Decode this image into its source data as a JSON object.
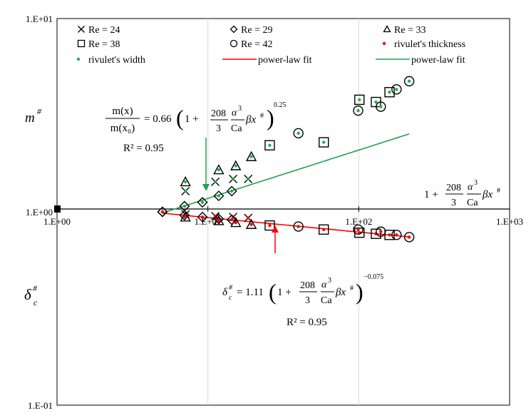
{
  "chart_data": {
    "type": "scatter",
    "xscale": "log",
    "yscale": "log",
    "xlim": [
      1,
      1000
    ],
    "ylim": [
      0.1,
      10
    ],
    "grid": "vertical",
    "legend_position": "top",
    "x_ticks": [
      "1.E+00",
      "1.E+01",
      "1.E+02",
      "1.E+03"
    ],
    "y_ticks": [
      "1.E-01",
      "1.E+00",
      "1.E+01"
    ],
    "legend": [
      {
        "label": "Re = 24",
        "marker": "x"
      },
      {
        "label": "Re = 29",
        "marker": "diamond"
      },
      {
        "label": "Re = 33",
        "marker": "triangle"
      },
      {
        "label": "Re = 38",
        "marker": "square"
      },
      {
        "label": "Re = 42",
        "marker": "circle"
      },
      {
        "label": "rivulet's thickness",
        "marker": "dot",
        "color": "#ff0000"
      },
      {
        "label": "rivulet's width",
        "marker": "dot",
        "color": "#22b050"
      },
      {
        "label": "power-law fit",
        "marker": "line",
        "color": "#ff0000"
      },
      {
        "label": "power-law fit",
        "marker": "line",
        "color": "#22a050"
      }
    ],
    "series": [
      {
        "name": "Re = 24",
        "marker": "x",
        "width_points": [
          [
            7.1,
            1.28
          ],
          [
            11.2,
            1.43
          ],
          [
            14.7,
            1.48
          ],
          [
            18.5,
            1.48
          ]
        ],
        "thickness_points": [
          [
            7.1,
            0.97
          ],
          [
            11.2,
            0.95
          ],
          [
            14.7,
            0.94
          ],
          [
            18.5,
            0.93
          ]
        ]
      },
      {
        "name": "Re = 29",
        "marker": "diamond",
        "width_points": [
          [
            5.0,
            1.0
          ],
          [
            7.0,
            1.07
          ],
          [
            9.2,
            1.12
          ],
          [
            11.8,
            1.21
          ],
          [
            14.4,
            1.28
          ]
        ],
        "thickness_points": [
          [
            5.0,
            1.0
          ],
          [
            7.0,
            0.96
          ],
          [
            9.2,
            0.94
          ],
          [
            11.8,
            0.92
          ],
          [
            14.4,
            0.91
          ]
        ]
      },
      {
        "name": "Re = 33",
        "marker": "triangle",
        "width_points": [
          [
            7.1,
            1.43
          ],
          [
            11.8,
            1.65
          ],
          [
            15.3,
            1.73
          ],
          [
            19.4,
            1.93
          ]
        ],
        "thickness_points": [
          [
            7.1,
            0.94
          ],
          [
            11.8,
            0.9
          ],
          [
            15.3,
            0.88
          ],
          [
            19.4,
            0.86
          ]
        ]
      },
      {
        "name": "Re = 38",
        "marker": "square",
        "width_points": [
          [
            25.7,
            2.21
          ],
          [
            58.6,
            2.29
          ],
          [
            101,
            3.8
          ],
          [
            130,
            3.7
          ],
          [
            160,
            4.16
          ]
        ],
        "thickness_points": [
          [
            25.7,
            0.85
          ],
          [
            58.6,
            0.81
          ],
          [
            101,
            0.78
          ],
          [
            130,
            0.77
          ],
          [
            160,
            0.76
          ]
        ]
      },
      {
        "name": "Re = 42",
        "marker": "circle",
        "width_points": [
          [
            39.8,
            2.55
          ],
          [
            99.1,
            3.34
          ],
          [
            140,
            3.5
          ],
          [
            178,
            4.3
          ],
          [
            216,
            4.74
          ]
        ],
        "thickness_points": [
          [
            39.8,
            0.84
          ],
          [
            99.1,
            0.81
          ],
          [
            140,
            0.79
          ],
          [
            178,
            0.76
          ],
          [
            216,
            0.74
          ]
        ]
      }
    ],
    "fits": [
      {
        "name": "power-law fit",
        "quantity": "width",
        "coefficient": 0.66,
        "exponent": 0.25,
        "x_range": [
          5,
          216
        ],
        "color": "#22a050"
      },
      {
        "name": "power-law fit",
        "quantity": "thickness",
        "coefficient": 1.11,
        "exponent": -0.075,
        "x_range": [
          5,
          216
        ],
        "color": "#ff0000"
      }
    ],
    "annotations": {
      "upper_equation": {
        "lhs_num": "m(x)",
        "lhs_den": "m(x₀)",
        "equals": "= 0.66",
        "exponent": "0.25",
        "r2": "R² = 0.95"
      },
      "lower_equation": {
        "lhs": "δ",
        "lhs_sub": "c",
        "lhs_sup": "#",
        "equals": "= 1.11",
        "exponent": "−0.075",
        "r2": "R² = 0.95"
      },
      "bracket": {
        "one_plus": "1 +",
        "num": "208",
        "den": "3",
        "alpha": "α",
        "alpha_exp": "3",
        "ca": "Ca",
        "beta_x": "βx",
        "x_sup": "#"
      },
      "x_axis_label": {
        "one_plus": "1 +",
        "num": "208",
        "den": "3",
        "alpha": "α",
        "alpha_exp": "3",
        "ca": "Ca",
        "beta_x": "βx",
        "x_sup": "#"
      },
      "y_label_upper": {
        "base": "m",
        "sup": "#"
      },
      "y_label_lower": {
        "base": "δ",
        "sub": "c",
        "sup": "#"
      }
    }
  }
}
